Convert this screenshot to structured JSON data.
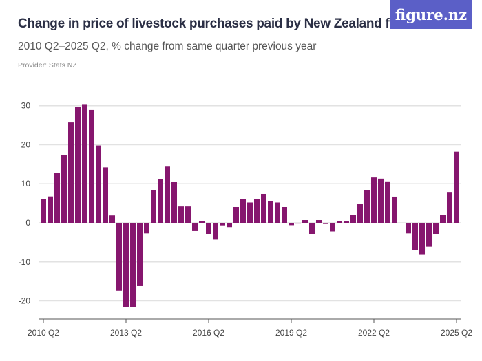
{
  "header": {
    "title": "Change in price of livestock purchases paid by New Zealand farms",
    "subtitle": "2010 Q2–2025 Q2, % change from same quarter previous year",
    "provider": "Provider: Stats NZ",
    "logo": "figure.nz"
  },
  "colors": {
    "bar": "#86166e",
    "grid": "#e2e2e2",
    "logo_bg": "#5b5fc7"
  },
  "chart_data": {
    "type": "bar",
    "title": "Change in price of livestock purchases paid by New Zealand farms",
    "subtitle": "2010 Q2–2025 Q2, % change from same quarter previous year",
    "xlabel": "",
    "ylabel": "",
    "ylim": [
      -25,
      33
    ],
    "yticks": [
      30,
      20,
      10,
      0,
      -10,
      -20
    ],
    "grid": true,
    "start": "2010 Q2",
    "xtick_labels": [
      "2010 Q2",
      "2013 Q2",
      "2016 Q2",
      "2019 Q2",
      "2022 Q2",
      "2025 Q2"
    ],
    "values": [
      6.1,
      6.75,
      12.8,
      17.4,
      25.7,
      29.7,
      30.4,
      28.9,
      19.8,
      14.2,
      1.9,
      -17.4,
      -21.5,
      -21.5,
      -16.2,
      -2.7,
      8.4,
      11.1,
      14.4,
      10.4,
      4.2,
      4.2,
      -2.1,
      0.35,
      -2.9,
      -4.3,
      -0.65,
      -1.1,
      4.05,
      6.0,
      5.2,
      6.1,
      7.4,
      5.6,
      5.2,
      4.05,
      -0.6,
      -0.2,
      0.7,
      -2.9,
      0.7,
      -0.3,
      -2.2,
      0.5,
      0.35,
      2.1,
      4.9,
      8.4,
      11.6,
      11.3,
      10.6,
      6.7,
      0,
      -2.7,
      -6.9,
      -8.2,
      -6.1,
      -2.9,
      2.1,
      7.9,
      18.2
    ]
  }
}
